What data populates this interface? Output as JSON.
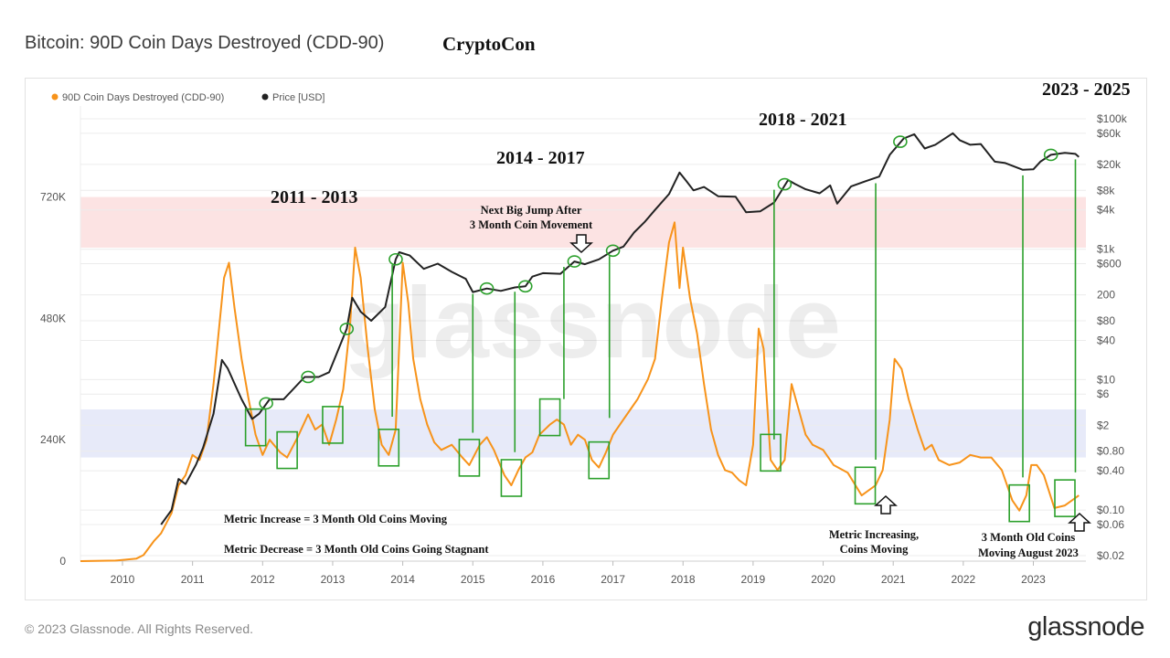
{
  "header": {
    "title": "Bitcoin: 90D Coin Days Destroyed (CDD-90)",
    "author": "CryptoCon"
  },
  "footer": {
    "copyright": "© 2023 Glassnode. All Rights Reserved.",
    "brand": "glassnode"
  },
  "chart_data": {
    "type": "line",
    "title": "Bitcoin: 90D Coin Days Destroyed (CDD-90)",
    "watermark": "glassnode",
    "x_ticks": [
      "2010",
      "2011",
      "2012",
      "2013",
      "2014",
      "2015",
      "2016",
      "2017",
      "2018",
      "2019",
      "2020",
      "2021",
      "2022",
      "2023"
    ],
    "x_range": [
      2009.4,
      2023.75
    ],
    "left_axis": {
      "ticks": [
        {
          "v": 0,
          "label": "0"
        },
        {
          "v": 240000,
          "label": "240K"
        },
        {
          "v": 480000,
          "label": "480K"
        },
        {
          "v": 720000,
          "label": "720K"
        }
      ],
      "range": [
        0,
        900000
      ]
    },
    "right_axis": {
      "scale": "log",
      "ticks": [
        {
          "v": 100000,
          "label": "$100k"
        },
        {
          "v": 60000,
          "label": "$60k"
        },
        {
          "v": 20000,
          "label": "$20k"
        },
        {
          "v": 8000,
          "label": "$8k"
        },
        {
          "v": 4000,
          "label": "$4k"
        },
        {
          "v": 1000,
          "label": "$1k"
        },
        {
          "v": 600,
          "label": "$600"
        },
        {
          "v": 200,
          "label": "200"
        },
        {
          "v": 80,
          "label": "$80"
        },
        {
          "v": 40,
          "label": "$40"
        },
        {
          "v": 10,
          "label": "$10"
        },
        {
          "v": 6,
          "label": "$6"
        },
        {
          "v": 2,
          "label": "$2"
        },
        {
          "v": 0.8,
          "label": "$0.80"
        },
        {
          "v": 0.4,
          "label": "$0.40"
        },
        {
          "v": 0.1,
          "label": "$0.10"
        },
        {
          "v": 0.06,
          "label": "$0.06"
        },
        {
          "v": 0.02,
          "label": "$0.02"
        }
      ]
    },
    "bands": [
      {
        "name": "red-band",
        "from": 620000,
        "to": 720000,
        "color": "#fbd9d9"
      },
      {
        "name": "blue-band",
        "from": 205000,
        "to": 300000,
        "color": "#dfe3f7"
      }
    ],
    "series": [
      {
        "name": "90D Coin Days Destroyed (CDD-90)",
        "color": "#f7931a",
        "axis": "left",
        "points": [
          [
            2009.4,
            0
          ],
          [
            2009.9,
            1000
          ],
          [
            2010.2,
            5000
          ],
          [
            2010.3,
            12000
          ],
          [
            2010.45,
            40000
          ],
          [
            2010.55,
            55000
          ],
          [
            2010.7,
            95000
          ],
          [
            2010.8,
            150000
          ],
          [
            2010.9,
            170000
          ],
          [
            2011.0,
            210000
          ],
          [
            2011.1,
            200000
          ],
          [
            2011.2,
            240000
          ],
          [
            2011.3,
            350000
          ],
          [
            2011.45,
            560000
          ],
          [
            2011.52,
            590000
          ],
          [
            2011.6,
            500000
          ],
          [
            2011.7,
            400000
          ],
          [
            2011.8,
            320000
          ],
          [
            2011.9,
            250000
          ],
          [
            2012.0,
            210000
          ],
          [
            2012.1,
            240000
          ],
          [
            2012.25,
            215000
          ],
          [
            2012.35,
            205000
          ],
          [
            2012.5,
            245000
          ],
          [
            2012.65,
            290000
          ],
          [
            2012.75,
            260000
          ],
          [
            2012.85,
            270000
          ],
          [
            2012.95,
            230000
          ],
          [
            2013.05,
            280000
          ],
          [
            2013.15,
            340000
          ],
          [
            2013.25,
            470000
          ],
          [
            2013.32,
            620000
          ],
          [
            2013.4,
            560000
          ],
          [
            2013.5,
            420000
          ],
          [
            2013.6,
            300000
          ],
          [
            2013.7,
            230000
          ],
          [
            2013.8,
            210000
          ],
          [
            2013.9,
            260000
          ],
          [
            2014.0,
            590000
          ],
          [
            2014.08,
            510000
          ],
          [
            2014.15,
            400000
          ],
          [
            2014.25,
            320000
          ],
          [
            2014.35,
            270000
          ],
          [
            2014.45,
            235000
          ],
          [
            2014.55,
            220000
          ],
          [
            2014.7,
            230000
          ],
          [
            2014.85,
            205000
          ],
          [
            2014.95,
            190000
          ],
          [
            2015.1,
            230000
          ],
          [
            2015.2,
            245000
          ],
          [
            2015.3,
            220000
          ],
          [
            2015.45,
            170000
          ],
          [
            2015.55,
            150000
          ],
          [
            2015.65,
            180000
          ],
          [
            2015.75,
            205000
          ],
          [
            2015.85,
            215000
          ],
          [
            2015.95,
            250000
          ],
          [
            2016.1,
            270000
          ],
          [
            2016.2,
            280000
          ],
          [
            2016.3,
            270000
          ],
          [
            2016.4,
            230000
          ],
          [
            2016.5,
            250000
          ],
          [
            2016.6,
            240000
          ],
          [
            2016.7,
            200000
          ],
          [
            2016.8,
            185000
          ],
          [
            2016.9,
            215000
          ],
          [
            2017.0,
            250000
          ],
          [
            2017.1,
            270000
          ],
          [
            2017.25,
            300000
          ],
          [
            2017.35,
            320000
          ],
          [
            2017.5,
            360000
          ],
          [
            2017.6,
            400000
          ],
          [
            2017.7,
            520000
          ],
          [
            2017.8,
            630000
          ],
          [
            2017.88,
            670000
          ],
          [
            2017.95,
            540000
          ],
          [
            2018.0,
            620000
          ],
          [
            2018.1,
            520000
          ],
          [
            2018.2,
            450000
          ],
          [
            2018.3,
            350000
          ],
          [
            2018.4,
            260000
          ],
          [
            2018.5,
            210000
          ],
          [
            2018.6,
            180000
          ],
          [
            2018.7,
            175000
          ],
          [
            2018.8,
            160000
          ],
          [
            2018.9,
            150000
          ],
          [
            2019.0,
            230000
          ],
          [
            2019.08,
            460000
          ],
          [
            2019.15,
            420000
          ],
          [
            2019.25,
            200000
          ],
          [
            2019.35,
            180000
          ],
          [
            2019.45,
            200000
          ],
          [
            2019.55,
            350000
          ],
          [
            2019.65,
            300000
          ],
          [
            2019.75,
            250000
          ],
          [
            2019.85,
            230000
          ],
          [
            2020.0,
            220000
          ],
          [
            2020.15,
            190000
          ],
          [
            2020.35,
            175000
          ],
          [
            2020.55,
            130000
          ],
          [
            2020.75,
            150000
          ],
          [
            2020.85,
            180000
          ],
          [
            2020.95,
            280000
          ],
          [
            2021.02,
            400000
          ],
          [
            2021.12,
            380000
          ],
          [
            2021.22,
            320000
          ],
          [
            2021.35,
            260000
          ],
          [
            2021.45,
            220000
          ],
          [
            2021.55,
            230000
          ],
          [
            2021.65,
            200000
          ],
          [
            2021.8,
            190000
          ],
          [
            2021.95,
            195000
          ],
          [
            2022.1,
            210000
          ],
          [
            2022.25,
            205000
          ],
          [
            2022.4,
            205000
          ],
          [
            2022.55,
            180000
          ],
          [
            2022.7,
            120000
          ],
          [
            2022.8,
            100000
          ],
          [
            2022.9,
            130000
          ],
          [
            2022.97,
            190000
          ],
          [
            2023.05,
            190000
          ],
          [
            2023.15,
            170000
          ],
          [
            2023.3,
            105000
          ],
          [
            2023.45,
            110000
          ],
          [
            2023.55,
            120000
          ],
          [
            2023.65,
            130000
          ]
        ]
      },
      {
        "name": "Price [USD]",
        "color": "#222222",
        "axis": "right",
        "scale": "log",
        "points": [
          [
            2010.55,
            0.06
          ],
          [
            2010.7,
            0.1
          ],
          [
            2010.8,
            0.3
          ],
          [
            2010.9,
            0.25
          ],
          [
            2011.05,
            0.5
          ],
          [
            2011.15,
            0.9
          ],
          [
            2011.3,
            3
          ],
          [
            2011.42,
            20
          ],
          [
            2011.5,
            15
          ],
          [
            2011.7,
            5
          ],
          [
            2011.85,
            2.5
          ],
          [
            2011.95,
            3
          ],
          [
            2012.1,
            5
          ],
          [
            2012.3,
            5
          ],
          [
            2012.6,
            11
          ],
          [
            2012.8,
            11
          ],
          [
            2012.95,
            13
          ],
          [
            2013.2,
            60
          ],
          [
            2013.28,
            180
          ],
          [
            2013.4,
            110
          ],
          [
            2013.55,
            80
          ],
          [
            2013.75,
            130
          ],
          [
            2013.9,
            700
          ],
          [
            2013.95,
            900
          ],
          [
            2014.1,
            800
          ],
          [
            2014.3,
            500
          ],
          [
            2014.5,
            600
          ],
          [
            2014.7,
            450
          ],
          [
            2014.9,
            350
          ],
          [
            2015.0,
            220
          ],
          [
            2015.2,
            250
          ],
          [
            2015.4,
            230
          ],
          [
            2015.6,
            260
          ],
          [
            2015.75,
            270
          ],
          [
            2015.85,
            380
          ],
          [
            2016.0,
            430
          ],
          [
            2016.25,
            420
          ],
          [
            2016.45,
            650
          ],
          [
            2016.6,
            590
          ],
          [
            2016.8,
            700
          ],
          [
            2017.0,
            950
          ],
          [
            2017.15,
            1100
          ],
          [
            2017.3,
            1800
          ],
          [
            2017.45,
            2600
          ],
          [
            2017.6,
            4000
          ],
          [
            2017.8,
            7000
          ],
          [
            2017.95,
            15000
          ],
          [
            2018.05,
            11000
          ],
          [
            2018.15,
            8000
          ],
          [
            2018.3,
            9000
          ],
          [
            2018.5,
            6500
          ],
          [
            2018.75,
            6400
          ],
          [
            2018.9,
            3700
          ],
          [
            2019.1,
            3800
          ],
          [
            2019.3,
            5200
          ],
          [
            2019.5,
            11500
          ],
          [
            2019.6,
            10000
          ],
          [
            2019.75,
            8300
          ],
          [
            2019.95,
            7200
          ],
          [
            2020.1,
            9500
          ],
          [
            2020.2,
            5000
          ],
          [
            2020.4,
            9200
          ],
          [
            2020.6,
            11000
          ],
          [
            2020.8,
            13000
          ],
          [
            2020.95,
            28000
          ],
          [
            2021.15,
            50000
          ],
          [
            2021.3,
            58000
          ],
          [
            2021.45,
            35000
          ],
          [
            2021.6,
            40000
          ],
          [
            2021.85,
            60000
          ],
          [
            2021.95,
            47000
          ],
          [
            2022.1,
            40000
          ],
          [
            2022.25,
            41000
          ],
          [
            2022.45,
            22000
          ],
          [
            2022.6,
            21000
          ],
          [
            2022.85,
            16500
          ],
          [
            2023.0,
            16800
          ],
          [
            2023.1,
            22000
          ],
          [
            2023.25,
            28000
          ],
          [
            2023.45,
            30000
          ],
          [
            2023.6,
            29000
          ],
          [
            2023.65,
            26000
          ]
        ]
      }
    ],
    "legend": [
      "90D Coin Days Destroyed (CDD-90)",
      "Price [USD]"
    ],
    "annotations": {
      "eras": [
        "2011 - 2013",
        "2014 - 2017",
        "2018 - 2021",
        "2023 - 2025"
      ],
      "callout_jump": [
        "Next Big Jump After",
        "3 Month Coin Movement"
      ],
      "notes": [
        "Metric Increase = 3 Month Old Coins Moving",
        "Metric Decrease = 3 Month Old Coins Going Stagnant"
      ],
      "callout_increasing": [
        "Metric Increasing,",
        "Coins Moving"
      ],
      "callout_aug": [
        "3 Month Old Coins",
        "Moving August 2023"
      ],
      "box_years": [
        2011.9,
        2012.35,
        2013.0,
        2013.8,
        2014.95,
        2015.55,
        2016.1,
        2016.8,
        2019.25,
        2020.6,
        2022.8,
        2023.45
      ],
      "circle_years": [
        2012.05,
        2012.65,
        2013.2,
        2013.9,
        2015.2,
        2015.75,
        2016.45,
        2017.0,
        2019.45,
        2021.1,
        2023.25
      ]
    }
  }
}
